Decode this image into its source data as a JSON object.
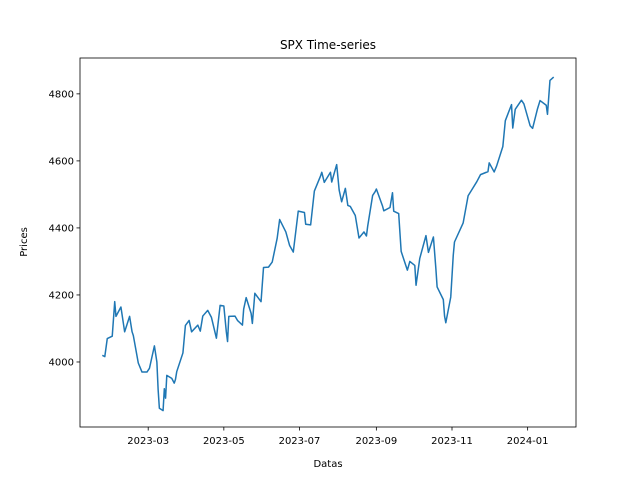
{
  "chart_data": {
    "type": "line",
    "title": "SPX Time-series",
    "xlabel": "Datas",
    "ylabel": "Prices",
    "x": [
      "2023-01-23",
      "2023-01-25",
      "2023-01-27",
      "2023-01-31",
      "2023-02-02",
      "2023-02-03",
      "2023-02-07",
      "2023-02-10",
      "2023-02-14",
      "2023-02-16",
      "2023-02-17",
      "2023-02-21",
      "2023-02-24",
      "2023-02-28",
      "2023-03-02",
      "2023-03-06",
      "2023-03-08",
      "2023-03-09",
      "2023-03-10",
      "2023-03-13",
      "2023-03-14",
      "2023-03-15",
      "2023-03-16",
      "2023-03-20",
      "2023-03-22",
      "2023-03-23",
      "2023-03-24",
      "2023-03-29",
      "2023-03-31",
      "2023-04-03",
      "2023-04-05",
      "2023-04-10",
      "2023-04-12",
      "2023-04-14",
      "2023-04-18",
      "2023-04-21",
      "2023-04-25",
      "2023-04-28",
      "2023-05-01",
      "2023-05-03",
      "2023-05-04",
      "2023-05-05",
      "2023-05-10",
      "2023-05-12",
      "2023-05-16",
      "2023-05-17",
      "2023-05-19",
      "2023-05-23",
      "2023-05-24",
      "2023-05-26",
      "2023-05-31",
      "2023-06-02",
      "2023-06-06",
      "2023-06-09",
      "2023-06-13",
      "2023-06-15",
      "2023-06-20",
      "2023-06-23",
      "2023-06-26",
      "2023-06-30",
      "2023-07-05",
      "2023-07-06",
      "2023-07-10",
      "2023-07-13",
      "2023-07-18",
      "2023-07-19",
      "2023-07-21",
      "2023-07-26",
      "2023-07-27",
      "2023-07-31",
      "2023-08-02",
      "2023-08-04",
      "2023-08-07",
      "2023-08-09",
      "2023-08-11",
      "2023-08-15",
      "2023-08-18",
      "2023-08-22",
      "2023-08-24",
      "2023-08-25",
      "2023-08-29",
      "2023-08-31",
      "2023-09-01",
      "2023-09-06",
      "2023-09-07",
      "2023-09-12",
      "2023-09-14",
      "2023-09-15",
      "2023-09-19",
      "2023-09-21",
      "2023-09-26",
      "2023-09-28",
      "2023-10-02",
      "2023-10-03",
      "2023-10-06",
      "2023-10-11",
      "2023-10-13",
      "2023-10-17",
      "2023-10-19",
      "2023-10-20",
      "2023-10-25",
      "2023-10-26",
      "2023-10-27",
      "2023-10-31",
      "2023-11-02",
      "2023-11-03",
      "2023-11-10",
      "2023-11-14",
      "2023-11-17",
      "2023-11-21",
      "2023-11-24",
      "2023-11-30",
      "2023-12-01",
      "2023-12-05",
      "2023-12-07",
      "2023-12-12",
      "2023-12-14",
      "2023-12-19",
      "2023-12-20",
      "2023-12-22",
      "2023-12-27",
      "2023-12-29",
      "2024-01-03",
      "2024-01-05",
      "2024-01-09",
      "2024-01-11",
      "2024-01-16",
      "2024-01-17",
      "2024-01-19",
      "2024-01-22"
    ],
    "series": [
      {
        "name": "SPX",
        "color": "#1f77b4",
        "values": [
          4020,
          4016,
          4070,
          4077,
          4180,
          4136,
          4164,
          4090,
          4136,
          4090,
          4079,
          3997,
          3970,
          3970,
          3981,
          4048,
          4000,
          3918,
          3862,
          3855,
          3920,
          3892,
          3960,
          3951,
          3937,
          3948,
          3971,
          4027,
          4109,
          4124,
          4090,
          4110,
          4092,
          4137,
          4154,
          4133,
          4071,
          4169,
          4167,
          4090,
          4061,
          4136,
          4137,
          4124,
          4110,
          4158,
          4192,
          4145,
          4115,
          4205,
          4180,
          4282,
          4283,
          4298,
          4369,
          4425,
          4388,
          4348,
          4328,
          4450,
          4446,
          4411,
          4409,
          4510,
          4555,
          4566,
          4536,
          4566,
          4537,
          4589,
          4513,
          4478,
          4518,
          4467,
          4464,
          4437,
          4370,
          4388,
          4376,
          4405,
          4497,
          4508,
          4516,
          4465,
          4451,
          4461,
          4505,
          4450,
          4443,
          4330,
          4274,
          4300,
          4288,
          4229,
          4309,
          4377,
          4327,
          4373,
          4278,
          4224,
          4186,
          4137,
          4117,
          4194,
          4318,
          4358,
          4415,
          4496,
          4514,
          4538,
          4559,
          4568,
          4594,
          4567,
          4585,
          4643,
          4720,
          4768,
          4698,
          4754,
          4781,
          4770,
          4705,
          4697,
          4756,
          4780,
          4766,
          4739,
          4840,
          4850
        ]
      }
    ],
    "xlim": [
      "2023-01-05",
      "2024-02-09"
    ],
    "xticks": [
      {
        "value": "2023-03-01",
        "label": "2023-03"
      },
      {
        "value": "2023-05-01",
        "label": "2023-05"
      },
      {
        "value": "2023-07-01",
        "label": "2023-07"
      },
      {
        "value": "2023-09-01",
        "label": "2023-09"
      },
      {
        "value": "2023-11-01",
        "label": "2023-11"
      },
      {
        "value": "2024-01-01",
        "label": "2024-01"
      }
    ],
    "ylim": [
      3806,
      4907
    ],
    "yticks": [
      4000,
      4200,
      4400,
      4600,
      4800
    ],
    "grid": false
  }
}
